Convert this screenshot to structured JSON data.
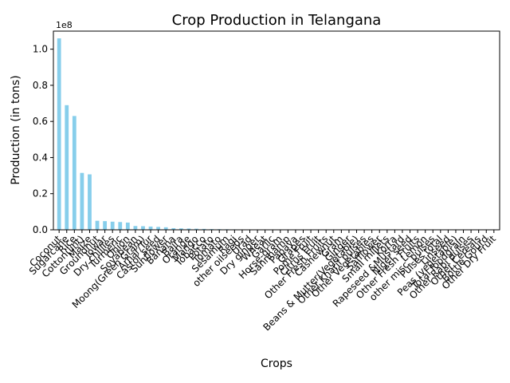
{
  "chart_data": {
    "type": "bar",
    "title": "Crop Production in Telangana",
    "xlabel": "Crops",
    "ylabel": "Production (in tons)",
    "y_offset_text": "1e8",
    "ylim": [
      0,
      1.1
    ],
    "y_ticks": [
      "0.0",
      "0.2",
      "0.4",
      "0.6",
      "0.8",
      "1.0"
    ],
    "bar_color": "#87ceeb",
    "categories": [
      "Coconut",
      "Sugarcane",
      "Rice",
      "Cotton(lint)",
      "Maize",
      "Groundnut",
      "Jowar",
      "Dry chillies",
      "Turmeric",
      "Onion",
      "Soyabean",
      "Moong(Green Gram)",
      "Arhar/Tur",
      "Castor seed",
      "Sunflower",
      "Banana",
      "Bajra",
      "Orange",
      "Mango",
      "Tobacco",
      "Potato",
      "Tomato",
      "Sesamum",
      "Ragi",
      "other oilseeds",
      "Urad",
      "Dry ginger",
      "Wheat",
      "Garlic",
      "Horse-gram",
      "Sannhamp",
      "Papaya",
      "Grapes",
      "Pome Fruit",
      "Citrus Fruit",
      "Other Fresh Fruits",
      "Cashewnut",
      "Gram",
      "Ginger",
      "Beans & Mutter(Vegetable)",
      "Other Kharif pulses",
      "Other Vegetables",
      "Safflower",
      "Small millets",
      "Korra",
      "Rapeseed &Mustard",
      "Niger seed",
      "Other Fresh Fruits",
      "Lemon",
      "other misc. pulses",
      "Pulses total",
      "Linseed",
      "Peas (vegetable)",
      "Total foodgrain",
      "Other Rabi pulses",
      "Other Cereals",
      "Bottle Gourd",
      "Other Dry Fruit"
    ],
    "values": [
      1.06,
      0.69,
      0.63,
      0.315,
      0.307,
      0.05,
      0.048,
      0.045,
      0.043,
      0.04,
      0.021,
      0.02,
      0.018,
      0.016,
      0.014,
      0.009,
      0.008,
      0.007,
      0.006,
      0.005,
      0.004,
      0.0035,
      0.003,
      0.0025,
      0.002,
      0.0018,
      0.0016,
      0.0014,
      0.0012,
      0.001,
      0.0009,
      0.0008,
      0.0007,
      0.0006,
      0.0005,
      0.0004,
      0.0004,
      0.0003,
      0.0003,
      0.0003,
      0.0002,
      0.0002,
      0.0002,
      0.0001,
      0.0001,
      0.0001,
      0.0001,
      0.0001,
      0.0001,
      0.0001,
      0.0001,
      0.0001,
      0.0001,
      0.0001,
      0.0001,
      0.0001,
      0.0001,
      0.0001
    ]
  }
}
